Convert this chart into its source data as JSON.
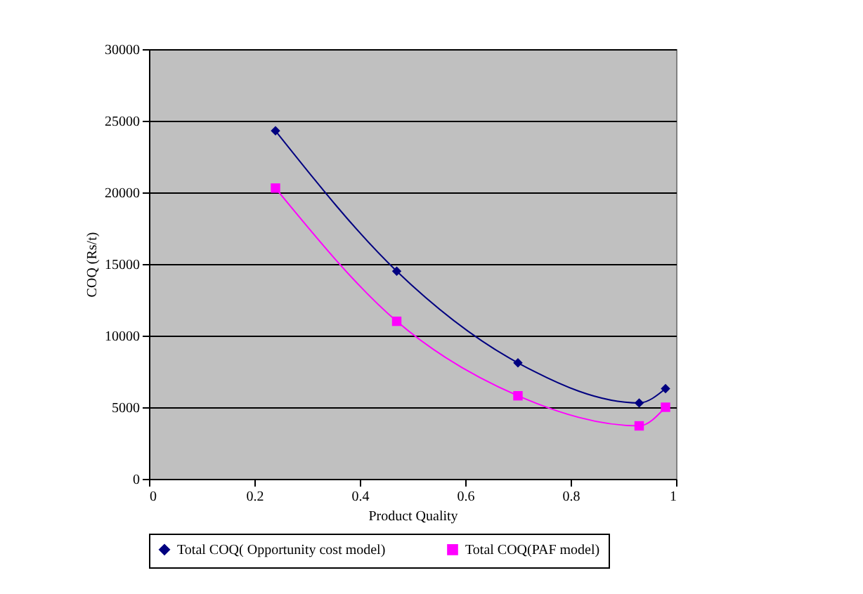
{
  "chart_data": {
    "type": "line",
    "xlabel": "Product Quality",
    "ylabel": "COQ (Rs/t)",
    "xlim": [
      0,
      1
    ],
    "xticks": [
      0,
      0.2,
      0.4,
      0.6,
      0.8,
      1
    ],
    "ylim": [
      0,
      30000
    ],
    "yticks": [
      0,
      5000,
      10000,
      15000,
      20000,
      25000,
      30000
    ],
    "grid": "y",
    "legend": "bottom",
    "series": [
      {
        "name": "Total COQ( Opportunity cost model)",
        "color": "#000080",
        "marker": "diamond",
        "x": [
          0.24,
          0.47,
          0.7,
          0.93,
          0.98
        ],
        "values": [
          24300,
          14500,
          8100,
          5300,
          6300
        ]
      },
      {
        "name": "Total COQ(PAF model)",
        "color": "#ff00ff",
        "marker": "square",
        "x": [
          0.24,
          0.47,
          0.7,
          0.93,
          0.98
        ],
        "values": [
          20300,
          11000,
          5800,
          3700,
          5000
        ]
      }
    ]
  }
}
